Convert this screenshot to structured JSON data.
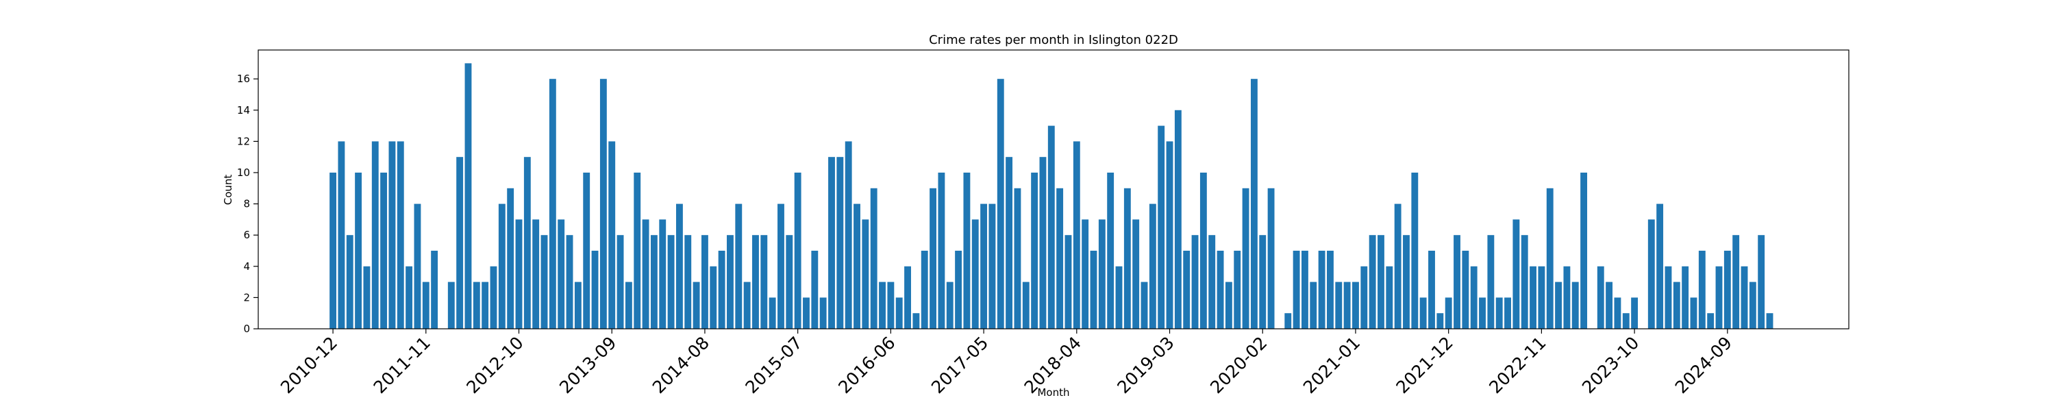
{
  "chart_data": {
    "type": "bar",
    "title": "Crime rates per month in Islington 022D",
    "x_label": "Month",
    "y_label": "Count",
    "color": "#1f77b4",
    "categories": [
      "2010-12",
      null,
      null,
      null,
      null,
      null,
      null,
      null,
      null,
      null,
      null,
      "2011-11",
      null,
      null,
      null,
      null,
      null,
      null,
      null,
      null,
      null,
      null,
      "2012-10",
      null,
      null,
      null,
      null,
      null,
      null,
      null,
      null,
      null,
      null,
      "2013-09",
      null,
      null,
      null,
      null,
      null,
      null,
      null,
      null,
      null,
      null,
      "2014-08",
      null,
      null,
      null,
      null,
      null,
      null,
      null,
      null,
      null,
      null,
      "2015-07",
      null,
      null,
      null,
      null,
      null,
      null,
      null,
      null,
      null,
      null,
      "2016-06",
      null,
      null,
      null,
      null,
      null,
      null,
      null,
      null,
      null,
      null,
      "2017-05",
      null,
      null,
      null,
      null,
      null,
      null,
      null,
      null,
      null,
      null,
      "2018-04",
      null,
      null,
      null,
      null,
      null,
      null,
      null,
      null,
      null,
      null,
      "2019-03",
      null,
      null,
      null,
      null,
      null,
      null,
      null,
      null,
      null,
      null,
      "2020-02",
      null,
      null,
      null,
      null,
      null,
      null,
      null,
      null,
      null,
      null,
      "2021-01",
      null,
      null,
      null,
      null,
      null,
      null,
      null,
      null,
      null,
      null,
      "2021-12",
      null,
      null,
      null,
      null,
      null,
      null,
      null,
      null,
      null,
      null,
      "2022-11",
      null,
      null,
      null,
      null,
      null,
      null,
      null,
      null,
      null,
      null,
      "2023-10",
      null,
      null,
      null,
      null,
      null,
      null,
      null,
      null,
      null,
      null,
      "2024-09",
      null,
      null,
      null,
      null,
      null
    ],
    "values": [
      10,
      12,
      6,
      10,
      4,
      12,
      10,
      12,
      12,
      4,
      8,
      3,
      5,
      0,
      3,
      11,
      17,
      3,
      3,
      4,
      8,
      9,
      7,
      11,
      7,
      6,
      16,
      7,
      6,
      3,
      10,
      5,
      16,
      12,
      6,
      3,
      10,
      7,
      6,
      7,
      6,
      8,
      6,
      3,
      6,
      4,
      5,
      6,
      8,
      3,
      6,
      6,
      2,
      8,
      6,
      10,
      2,
      5,
      2,
      11,
      11,
      12,
      8,
      7,
      9,
      3,
      3,
      2,
      4,
      1,
      5,
      9,
      10,
      3,
      5,
      10,
      7,
      8,
      8,
      16,
      11,
      9,
      3,
      10,
      11,
      13,
      9,
      6,
      12,
      7,
      5,
      7,
      10,
      4,
      9,
      7,
      3,
      8,
      13,
      12,
      14,
      5,
      6,
      10,
      6,
      5,
      3,
      5,
      9,
      16,
      6,
      9,
      0,
      1,
      5,
      5,
      3,
      5,
      5,
      3,
      3,
      3,
      4,
      6,
      6,
      4,
      8,
      6,
      10,
      2,
      5,
      1,
      2,
      6,
      5,
      4,
      2,
      6,
      2,
      2,
      7,
      6,
      4,
      4,
      9,
      3,
      4,
      3,
      10,
      0,
      4,
      3,
      2,
      1,
      2,
      0,
      7,
      8,
      4,
      3,
      4,
      2,
      5,
      1,
      4,
      5,
      6,
      4,
      3,
      6,
      1
    ],
    "ylim": [
      0,
      17.85
    ],
    "yticks": [
      0,
      2,
      4,
      6,
      8,
      10,
      12,
      14,
      16
    ],
    "grid": false
  }
}
